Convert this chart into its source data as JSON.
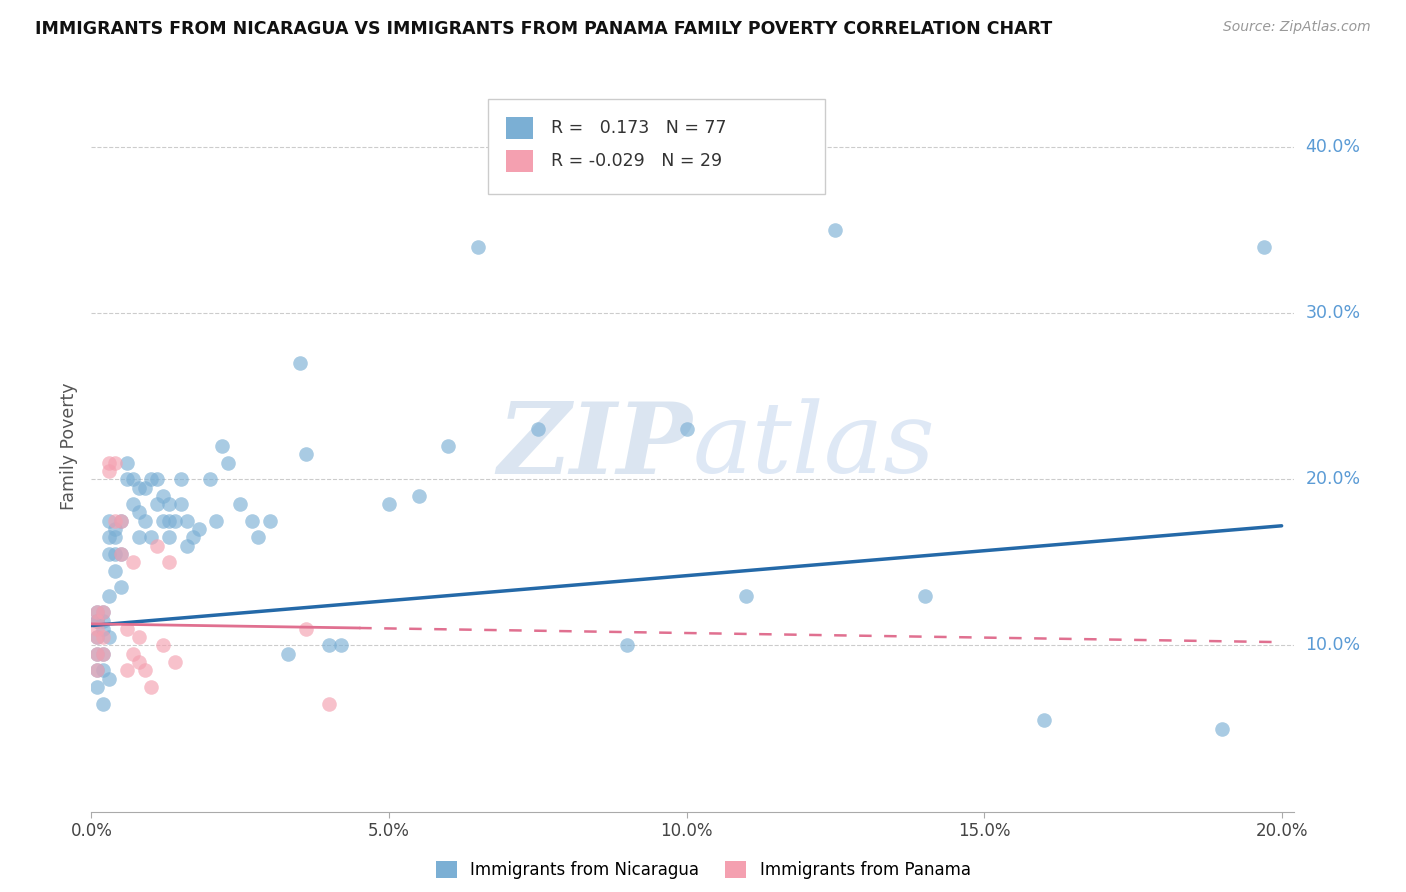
{
  "title": "IMMIGRANTS FROM NICARAGUA VS IMMIGRANTS FROM PANAMA FAMILY POVERTY CORRELATION CHART",
  "source": "Source: ZipAtlas.com",
  "legend_label1": "Immigrants from Nicaragua",
  "legend_label2": "Immigrants from Panama",
  "ylabel": "Family Poverty",
  "r1": 0.173,
  "n1": 77,
  "r2": -0.029,
  "n2": 29,
  "xlim": [
    0.0,
    0.202
  ],
  "ylim": [
    0.0,
    0.44
  ],
  "yticks": [
    0.1,
    0.2,
    0.3,
    0.4
  ],
  "xticks": [
    0.0,
    0.05,
    0.1,
    0.15,
    0.2
  ],
  "color_nicaragua": "#7bafd4",
  "color_panama": "#f4a0b0",
  "color_line_nicaragua": "#2469a8",
  "color_line_panama": "#e07090",
  "watermark_zip": "ZIP",
  "watermark_atlas": "atlas",
  "trendline_nic_x0": 0.0,
  "trendline_nic_y0": 0.112,
  "trendline_nic_x1": 0.2,
  "trendline_nic_y1": 0.172,
  "trendline_pan_x0": 0.0,
  "trendline_pan_y0": 0.113,
  "trendline_pan_x1": 0.2,
  "trendline_pan_y1": 0.102,
  "nicaragua_x": [
    0.001,
    0.001,
    0.001,
    0.001,
    0.001,
    0.001,
    0.001,
    0.002,
    0.002,
    0.002,
    0.002,
    0.002,
    0.002,
    0.003,
    0.003,
    0.003,
    0.003,
    0.003,
    0.003,
    0.004,
    0.004,
    0.004,
    0.004,
    0.005,
    0.005,
    0.005,
    0.006,
    0.006,
    0.007,
    0.007,
    0.008,
    0.008,
    0.008,
    0.009,
    0.009,
    0.01,
    0.01,
    0.011,
    0.011,
    0.012,
    0.012,
    0.013,
    0.013,
    0.013,
    0.014,
    0.015,
    0.015,
    0.016,
    0.016,
    0.017,
    0.018,
    0.02,
    0.021,
    0.022,
    0.023,
    0.025,
    0.027,
    0.028,
    0.03,
    0.033,
    0.035,
    0.036,
    0.04,
    0.042,
    0.05,
    0.055,
    0.06,
    0.065,
    0.075,
    0.09,
    0.1,
    0.11,
    0.125,
    0.14,
    0.16,
    0.19,
    0.197
  ],
  "nicaragua_y": [
    0.115,
    0.12,
    0.115,
    0.105,
    0.095,
    0.085,
    0.075,
    0.12,
    0.115,
    0.11,
    0.095,
    0.085,
    0.065,
    0.175,
    0.165,
    0.155,
    0.13,
    0.105,
    0.08,
    0.17,
    0.165,
    0.155,
    0.145,
    0.175,
    0.155,
    0.135,
    0.21,
    0.2,
    0.2,
    0.185,
    0.195,
    0.18,
    0.165,
    0.195,
    0.175,
    0.2,
    0.165,
    0.2,
    0.185,
    0.19,
    0.175,
    0.185,
    0.175,
    0.165,
    0.175,
    0.2,
    0.185,
    0.175,
    0.16,
    0.165,
    0.17,
    0.2,
    0.175,
    0.22,
    0.21,
    0.185,
    0.175,
    0.165,
    0.175,
    0.095,
    0.27,
    0.215,
    0.1,
    0.1,
    0.185,
    0.19,
    0.22,
    0.34,
    0.23,
    0.1,
    0.23,
    0.13,
    0.35,
    0.13,
    0.055,
    0.05,
    0.34
  ],
  "panama_x": [
    0.001,
    0.001,
    0.001,
    0.001,
    0.001,
    0.001,
    0.002,
    0.002,
    0.002,
    0.003,
    0.003,
    0.004,
    0.004,
    0.005,
    0.005,
    0.006,
    0.006,
    0.007,
    0.007,
    0.008,
    0.008,
    0.009,
    0.01,
    0.011,
    0.012,
    0.013,
    0.014,
    0.036,
    0.04
  ],
  "panama_y": [
    0.12,
    0.115,
    0.11,
    0.105,
    0.095,
    0.085,
    0.12,
    0.105,
    0.095,
    0.21,
    0.205,
    0.21,
    0.175,
    0.175,
    0.155,
    0.11,
    0.085,
    0.15,
    0.095,
    0.105,
    0.09,
    0.085,
    0.075,
    0.16,
    0.1,
    0.15,
    0.09,
    0.11,
    0.065
  ]
}
